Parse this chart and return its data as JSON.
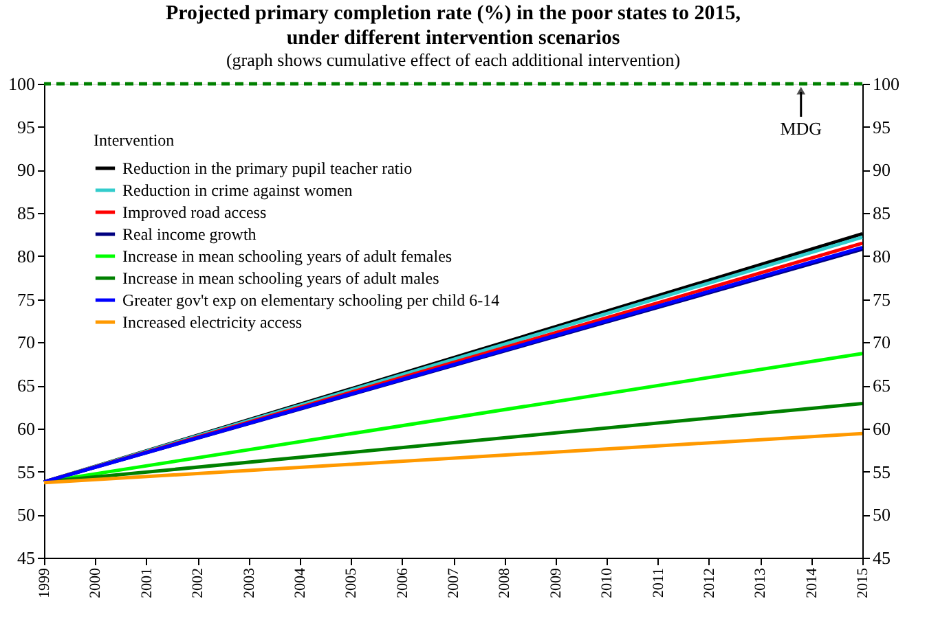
{
  "chart_data": {
    "type": "line",
    "title": "Projected primary completion rate (%) in the poor states to 2015, under different intervention scenarios",
    "subtitle": "(graph shows cumulative effect of each additional intervention)",
    "legend_title": "Intervention",
    "legend": "top left",
    "grid": false,
    "marker": "none",
    "line_style": "solid",
    "x": [
      1999,
      2015
    ],
    "xlim": [
      1999,
      2015
    ],
    "xticks": [
      1999,
      2000,
      2001,
      2002,
      2003,
      2004,
      2005,
      2006,
      2007,
      2008,
      2009,
      2010,
      2011,
      2012,
      2013,
      2014,
      2015
    ],
    "ylim": [
      45,
      100
    ],
    "yticks": [
      45,
      50,
      55,
      60,
      65,
      70,
      75,
      80,
      85,
      90,
      95,
      100
    ],
    "y2lim": [
      45,
      100
    ],
    "y2ticks": [
      45,
      50,
      55,
      60,
      65,
      70,
      75,
      80,
      85,
      90,
      95,
      100
    ],
    "series": [
      {
        "name": "Reduction in the primary pupil teacher ratio",
        "color": "#000000",
        "values": [
          53.8,
          82.6
        ]
      },
      {
        "name": "Reduction in crime against women",
        "color": "#33cccc",
        "values": [
          53.8,
          82.2
        ]
      },
      {
        "name": "Improved road access",
        "color": "#ff0000",
        "values": [
          53.8,
          81.5
        ]
      },
      {
        "name": "Real income growth",
        "color": "#000080",
        "values": [
          53.8,
          80.8
        ]
      },
      {
        "name": "Increase in mean schooling years of adult females",
        "color": "#00ff00",
        "values": [
          53.8,
          68.7
        ]
      },
      {
        "name": "Increase in mean schooling years of adult males",
        "color": "#008000",
        "values": [
          53.8,
          62.9
        ]
      },
      {
        "name": "Greater gov't exp on elementary schooling per child 6-14",
        "color": "#0000ff",
        "values": [
          53.8,
          81.0
        ]
      },
      {
        "name": "Increased electricity access",
        "color": "#ff9900",
        "values": [
          53.7,
          59.4
        ]
      }
    ],
    "ref_lines": [
      {
        "axis": "y",
        "value": 100,
        "color": "#008000",
        "line_style": "dashed"
      }
    ],
    "annotations": [
      {
        "text": "MDG",
        "x": 2013.8,
        "y": 100
      }
    ]
  }
}
